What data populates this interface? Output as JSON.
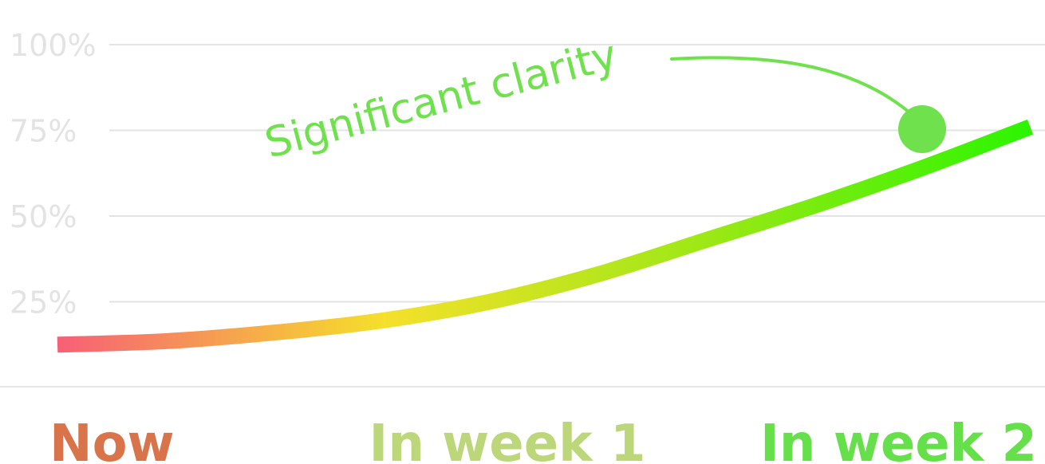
{
  "chart_data": {
    "type": "line",
    "categories": [
      "Now",
      "In week 1",
      "In week 2"
    ],
    "category_colors": [
      "#d9744a",
      "#bcd77a",
      "#66e04a"
    ],
    "yticks": [
      "25%",
      "50%",
      "75%",
      "100%"
    ],
    "ylim": [
      0,
      100
    ],
    "grid": true,
    "series": [
      {
        "x": [
          0,
          0.25,
          0.5,
          0.75,
          1.0,
          1.25,
          1.5,
          1.75,
          2.0,
          2.25
        ],
        "y": [
          12.5,
          13.5,
          16,
          19.5,
          25,
          33,
          43,
          53,
          64,
          76
        ]
      }
    ],
    "gradient_colors": [
      "#f75f76",
      "#f5e02a",
      "#9ae815",
      "#28f500"
    ],
    "annotation": {
      "text": "Significant clarity",
      "x": 2.0,
      "y": 63,
      "color": "#6ee14c"
    }
  }
}
